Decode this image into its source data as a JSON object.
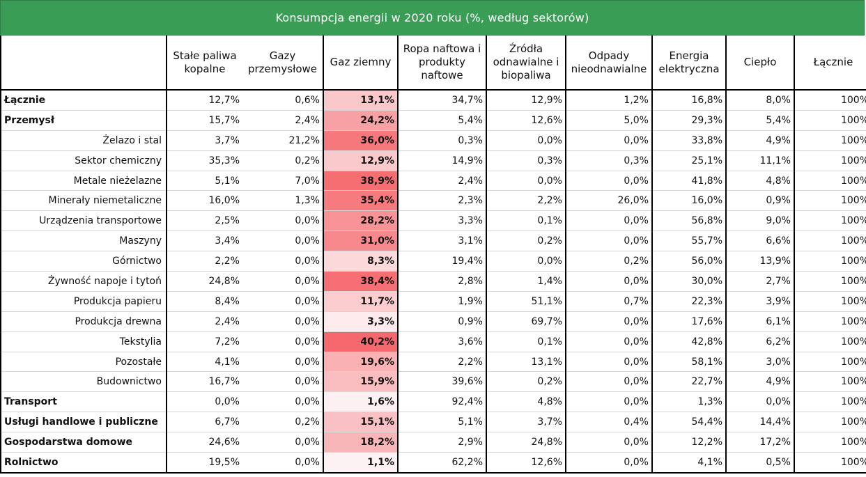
{
  "title": "Konsumpcja energii w 2020 roku (%, według sektorów)",
  "headers": [
    "Stałe paliwa kopalne",
    "Gazy przemysłowe",
    "Gaz ziemny",
    "Ropa naftowa i produkty naftowe",
    "Źródła odnawialne i biopaliwa",
    "Odpady nieodnawialne",
    "Energia elektryczna",
    "Ciepło",
    "Łącznie"
  ],
  "heatmap_colors": {
    "low": "#fdf6f7",
    "high": "#f5696e"
  },
  "rows": [
    {
      "name": "Łącznie",
      "level": "main",
      "values": [
        "12,7%",
        "0,6%",
        "13,1%",
        "34,7%",
        "12,9%",
        "1,2%",
        "16,8%",
        "8,0%",
        "100%"
      ],
      "gas": 13.1
    },
    {
      "name": "Przemysł",
      "level": "main",
      "values": [
        "15,7%",
        "2,4%",
        "24,2%",
        "5,4%",
        "12,6%",
        "5,0%",
        "29,3%",
        "5,4%",
        "100%"
      ],
      "gas": 24.2
    },
    {
      "name": "Żelazo i stal",
      "level": "sub",
      "values": [
        "3,7%",
        "21,2%",
        "36,0%",
        "0,3%",
        "0,0%",
        "0,0%",
        "33,8%",
        "4,9%",
        "100%"
      ],
      "gas": 36.0
    },
    {
      "name": "Sektor chemiczny",
      "level": "sub",
      "values": [
        "35,3%",
        "0,2%",
        "12,9%",
        "14,9%",
        "0,3%",
        "0,3%",
        "25,1%",
        "11,1%",
        "100%"
      ],
      "gas": 12.9
    },
    {
      "name": "Metale nieżelazne",
      "level": "sub",
      "values": [
        "5,1%",
        "7,0%",
        "38,9%",
        "2,4%",
        "0,0%",
        "0,0%",
        "41,8%",
        "4,8%",
        "100%"
      ],
      "gas": 38.9
    },
    {
      "name": "Minerały niemetaliczne",
      "level": "sub",
      "values": [
        "16,0%",
        "1,3%",
        "35,4%",
        "2,3%",
        "2,2%",
        "26,0%",
        "16,0%",
        "0,9%",
        "100%"
      ],
      "gas": 35.4
    },
    {
      "name": "Urządzenia transportowe",
      "level": "sub",
      "values": [
        "2,5%",
        "0,0%",
        "28,2%",
        "3,3%",
        "0,1%",
        "0,0%",
        "56,8%",
        "9,0%",
        "100%"
      ],
      "gas": 28.2
    },
    {
      "name": "Maszyny",
      "level": "sub",
      "values": [
        "3,4%",
        "0,0%",
        "31,0%",
        "3,1%",
        "0,2%",
        "0,0%",
        "55,7%",
        "6,6%",
        "100%"
      ],
      "gas": 31.0
    },
    {
      "name": "Górnictwo",
      "level": "sub",
      "values": [
        "2,2%",
        "0,0%",
        "8,3%",
        "19,4%",
        "0,0%",
        "0,2%",
        "56,0%",
        "13,9%",
        "100%"
      ],
      "gas": 8.3
    },
    {
      "name": "Żywność napoje i tytoń",
      "level": "sub",
      "values": [
        "24,8%",
        "0,0%",
        "38,4%",
        "2,8%",
        "1,4%",
        "0,0%",
        "30,0%",
        "2,7%",
        "100%"
      ],
      "gas": 38.4
    },
    {
      "name": "Produkcja papieru",
      "level": "sub",
      "values": [
        "8,4%",
        "0,0%",
        "11,7%",
        "1,9%",
        "51,1%",
        "0,7%",
        "22,3%",
        "3,9%",
        "100%"
      ],
      "gas": 11.7
    },
    {
      "name": "Produkcja drewna",
      "level": "sub",
      "values": [
        "2,4%",
        "0,0%",
        "3,3%",
        "0,9%",
        "69,7%",
        "0,0%",
        "17,6%",
        "6,1%",
        "100%"
      ],
      "gas": 3.3
    },
    {
      "name": "Tekstylia",
      "level": "sub",
      "values": [
        "7,2%",
        "0,0%",
        "40,2%",
        "3,6%",
        "0,1%",
        "0,0%",
        "42,8%",
        "6,2%",
        "100%"
      ],
      "gas": 40.2
    },
    {
      "name": "Pozostałe",
      "level": "sub",
      "values": [
        "4,1%",
        "0,0%",
        "19,6%",
        "2,2%",
        "13,1%",
        "0,0%",
        "58,1%",
        "3,0%",
        "100%"
      ],
      "gas": 19.6
    },
    {
      "name": "Budownictwo",
      "level": "sub",
      "values": [
        "16,7%",
        "0,0%",
        "15,9%",
        "39,6%",
        "0,2%",
        "0,0%",
        "22,7%",
        "4,9%",
        "100%"
      ],
      "gas": 15.9
    },
    {
      "name": "Transport",
      "level": "main",
      "values": [
        "0,0%",
        "0,0%",
        "1,6%",
        "92,4%",
        "4,8%",
        "0,0%",
        "1,3%",
        "0,0%",
        "100%"
      ],
      "gas": 1.6
    },
    {
      "name": "Usługi handlowe i publiczne",
      "level": "main",
      "values": [
        "6,7%",
        "0,2%",
        "15,1%",
        "5,1%",
        "3,7%",
        "0,4%",
        "54,4%",
        "14,4%",
        "100%"
      ],
      "gas": 15.1
    },
    {
      "name": "Gospodarstwa domowe",
      "level": "main",
      "values": [
        "24,6%",
        "0,0%",
        "18,2%",
        "2,9%",
        "24,8%",
        "0,0%",
        "12,2%",
        "17,2%",
        "100%"
      ],
      "gas": 18.2
    },
    {
      "name": "Rolnictwo",
      "level": "main",
      "values": [
        "19,5%",
        "0,0%",
        "1,1%",
        "62,2%",
        "12,6%",
        "0,0%",
        "4,1%",
        "0,5%",
        "100%"
      ],
      "gas": 1.1
    }
  ]
}
